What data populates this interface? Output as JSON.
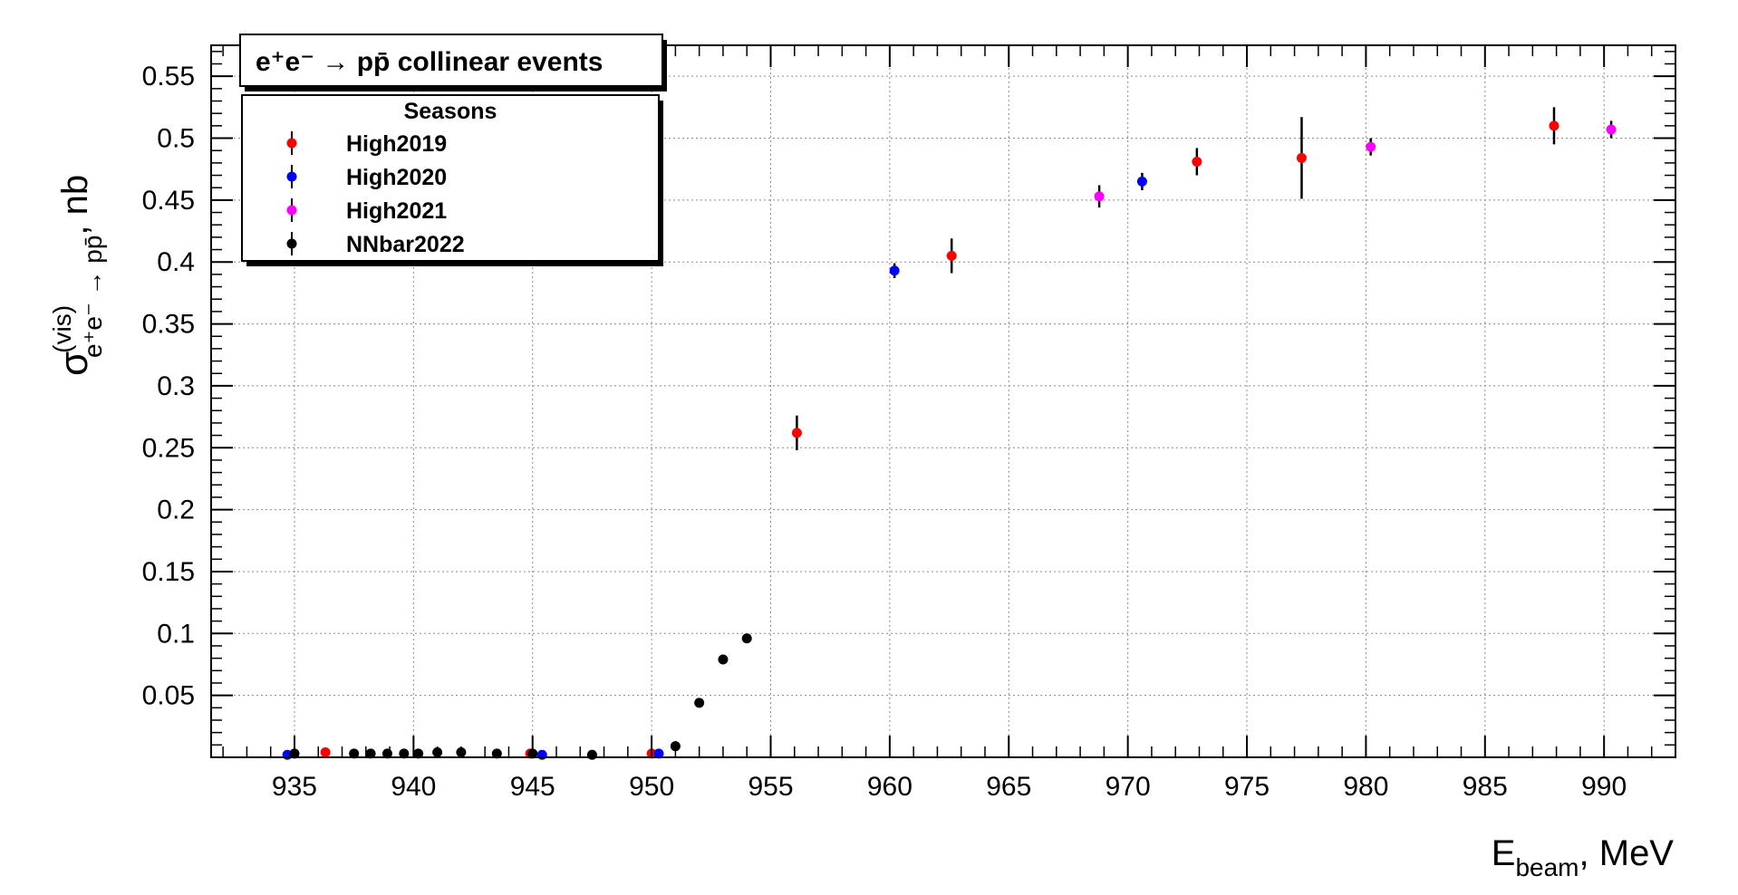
{
  "chart_data": {
    "type": "scatter",
    "title": "e⁺e⁻ → pp̄ collinear events",
    "xlabel": "E_beam, MeV",
    "ylabel": "σ^(vis)_e⁺e⁻ → pp̄, nb",
    "xlim": [
      931.5,
      993
    ],
    "ylim": [
      0,
      0.575
    ],
    "x_ticks": [
      935,
      940,
      945,
      950,
      955,
      960,
      965,
      970,
      975,
      980,
      985,
      990
    ],
    "y_ticks": [
      0.05,
      0.1,
      0.15,
      0.2,
      0.25,
      0.3,
      0.35,
      0.4,
      0.45,
      0.5,
      0.55
    ],
    "grid": true,
    "legend": {
      "title": "Seasons",
      "position": "top-left"
    },
    "series": [
      {
        "name": "High2019",
        "color": "#ff0000",
        "points": [
          {
            "x": 936.3,
            "y": 0.004,
            "err": 0.0015
          },
          {
            "x": 944.9,
            "y": 0.003,
            "err": 0.0015
          },
          {
            "x": 950.0,
            "y": 0.003,
            "err": 0.0015
          },
          {
            "x": 956.1,
            "y": 0.262,
            "err": 0.014
          },
          {
            "x": 962.6,
            "y": 0.405,
            "err": 0.014
          },
          {
            "x": 972.9,
            "y": 0.481,
            "err": 0.011
          },
          {
            "x": 977.3,
            "y": 0.484,
            "err": 0.033
          },
          {
            "x": 987.9,
            "y": 0.51,
            "err": 0.015
          }
        ]
      },
      {
        "name": "High2020",
        "color": "#0000ff",
        "points": [
          {
            "x": 934.7,
            "y": 0.002,
            "err": 0.0015
          },
          {
            "x": 945.4,
            "y": 0.002,
            "err": 0.0015
          },
          {
            "x": 950.3,
            "y": 0.003,
            "err": 0.0015
          },
          {
            "x": 960.2,
            "y": 0.393,
            "err": 0.006
          },
          {
            "x": 970.6,
            "y": 0.465,
            "err": 0.007
          }
        ]
      },
      {
        "name": "High2021",
        "color": "#ff00ff",
        "points": [
          {
            "x": 968.8,
            "y": 0.453,
            "err": 0.009
          },
          {
            "x": 980.2,
            "y": 0.493,
            "err": 0.007
          },
          {
            "x": 990.3,
            "y": 0.507,
            "err": 0.007
          }
        ]
      },
      {
        "name": "NNbar2022",
        "color": "#000000",
        "points": [
          {
            "x": 935.0,
            "y": 0.003,
            "err": 0.003
          },
          {
            "x": 937.5,
            "y": 0.003,
            "err": 0.003
          },
          {
            "x": 938.2,
            "y": 0.003,
            "err": 0.003
          },
          {
            "x": 938.9,
            "y": 0.003,
            "err": 0.003
          },
          {
            "x": 939.6,
            "y": 0.003,
            "err": 0.003
          },
          {
            "x": 940.2,
            "y": 0.003,
            "err": 0.003
          },
          {
            "x": 941.0,
            "y": 0.004,
            "err": 0.004
          },
          {
            "x": 942.0,
            "y": 0.004,
            "err": 0.004
          },
          {
            "x": 943.5,
            "y": 0.003,
            "err": 0.003
          },
          {
            "x": 945.0,
            "y": 0.003,
            "err": 0.003
          },
          {
            "x": 947.5,
            "y": 0.002,
            "err": 0.003
          },
          {
            "x": 951.0,
            "y": 0.009,
            "err": 0.004
          },
          {
            "x": 952.0,
            "y": 0.044,
            "err": 0.003
          },
          {
            "x": 953.0,
            "y": 0.079,
            "err": 0.003
          },
          {
            "x": 954.0,
            "y": 0.096,
            "err": 0.003
          }
        ]
      }
    ]
  }
}
